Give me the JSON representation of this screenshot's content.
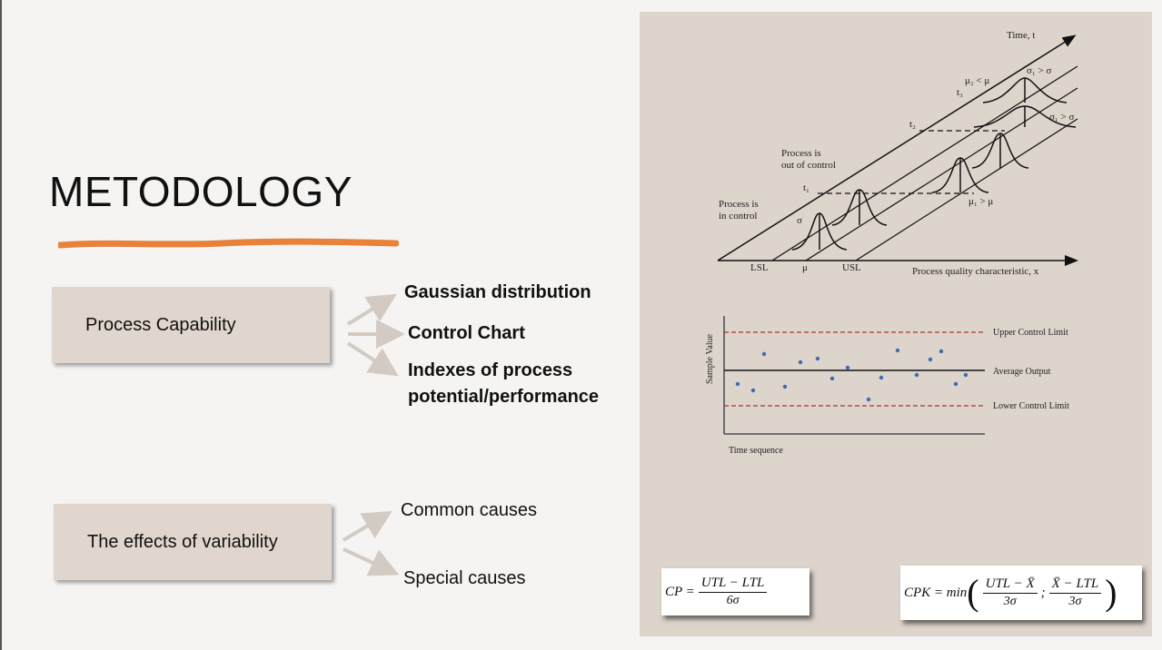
{
  "slide": {
    "title": "METODOLOGY",
    "accent_color": "#e8813a",
    "panel_color": "#ddd4cc",
    "box_color": "#e0d6cd"
  },
  "process_capability": {
    "label": "Process Capability",
    "items": [
      "Gaussian distribution",
      "Control Chart",
      "Indexes of process",
      "potential/performance"
    ]
  },
  "variability": {
    "label": "The effects of variability",
    "items": [
      "Common causes",
      "Special causes"
    ]
  },
  "distribution_diagram": {
    "axis_time": "Time, t",
    "axis_x": "Process quality characteristic, x",
    "lsl": "LSL",
    "mu": "μ",
    "usl": "USL",
    "sigma": "σ",
    "t1": "t₁",
    "t2": "t₂",
    "t3": "t₃",
    "in_control": [
      "Process is",
      "in control"
    ],
    "out_of_control": [
      "Process is",
      "out of control"
    ],
    "mu1_gt_mu": "μ₁ > μ",
    "mu2_lt_mu": "μ₂ < μ",
    "sigma1_gt_sigma_a": "σ₁ > σ",
    "sigma1_gt_sigma_b": "σ₁ > σ"
  },
  "control_chart": {
    "ylabel": "Sample Value",
    "xlabel": "Time sequence",
    "ucl_label": "Upper Control Limit",
    "avg_label": "Average Output",
    "lcl_label": "Lower Control Limit",
    "limit_color": "#b03030",
    "point_color": "#3b6bb5"
  },
  "formulas": {
    "cp": {
      "name": "CP =",
      "num": "UTL − LTL",
      "den": "6σ"
    },
    "cpk": {
      "name": "CPK = min",
      "num1": "UTL − X̄",
      "den1": "3σ",
      "sep": ";",
      "num2": "X̄ − LTL",
      "den2": "3σ"
    }
  }
}
